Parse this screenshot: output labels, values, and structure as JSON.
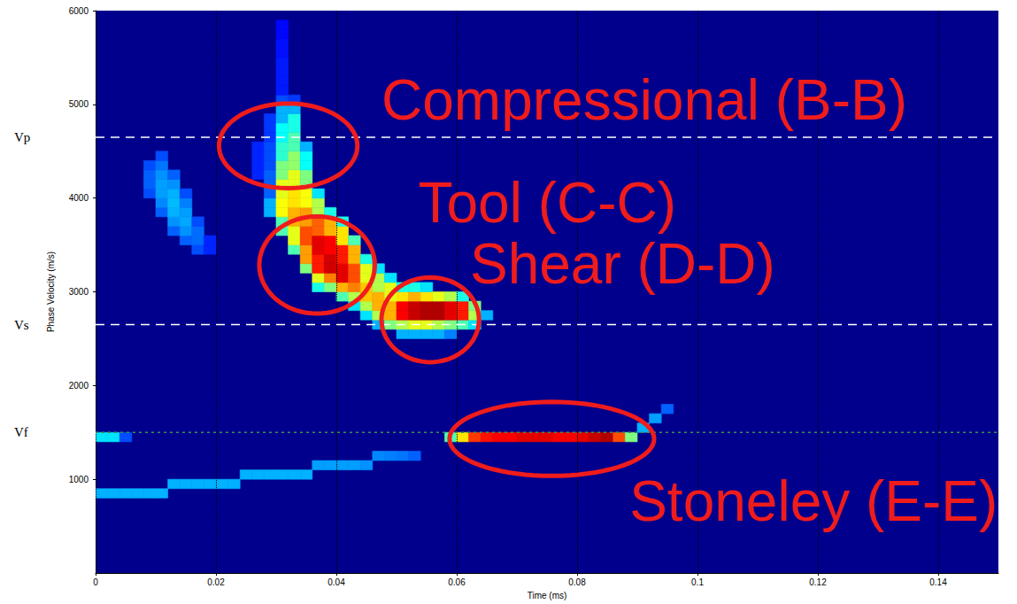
{
  "chart_data": {
    "type": "heatmap",
    "x_label": "Time (ms)",
    "y_label": "Phase Velocity (m/s)",
    "xlim": [
      0,
      0.15
    ],
    "xticks": [
      0,
      0.02,
      0.04,
      0.06,
      0.08,
      0.1,
      0.12,
      0.14
    ],
    "ylim": [
      0,
      6000
    ],
    "yticks": [
      1000,
      2000,
      3000,
      4000,
      5000,
      6000
    ],
    "grid": "x",
    "heatmap": {
      "cell_width": 0.002,
      "cell_height": 100,
      "color_range": [
        0,
        1
      ],
      "colors": [
        "#00008c",
        "#0000ff",
        "#007fff",
        "#00ffff",
        "#7fff7f",
        "#ffff00",
        "#ff7f00",
        "#ff0000",
        "#7f0000"
      ],
      "cells": [
        [
          0.008,
          4000,
          0.2
        ],
        [
          0.008,
          4100,
          0.22
        ],
        [
          0.008,
          4200,
          0.22
        ],
        [
          0.008,
          4300,
          0.2
        ],
        [
          0.01,
          3800,
          0.22
        ],
        [
          0.01,
          3900,
          0.26
        ],
        [
          0.01,
          4000,
          0.28
        ],
        [
          0.01,
          4100,
          0.28
        ],
        [
          0.01,
          4200,
          0.27
        ],
        [
          0.01,
          4300,
          0.24
        ],
        [
          0.01,
          4400,
          0.2
        ],
        [
          0.012,
          3600,
          0.22
        ],
        [
          0.012,
          3700,
          0.27
        ],
        [
          0.012,
          3800,
          0.3
        ],
        [
          0.012,
          3900,
          0.31
        ],
        [
          0.012,
          4000,
          0.3
        ],
        [
          0.012,
          4100,
          0.27
        ],
        [
          0.012,
          4200,
          0.22
        ],
        [
          0.014,
          3500,
          0.22
        ],
        [
          0.014,
          3600,
          0.27
        ],
        [
          0.014,
          3700,
          0.29
        ],
        [
          0.014,
          3800,
          0.28
        ],
        [
          0.014,
          3900,
          0.25
        ],
        [
          0.014,
          4000,
          0.2
        ],
        [
          0.016,
          3400,
          0.2
        ],
        [
          0.016,
          3500,
          0.23
        ],
        [
          0.016,
          3600,
          0.23
        ],
        [
          0.016,
          3700,
          0.2
        ],
        [
          0.018,
          3400,
          0.16
        ],
        [
          0.018,
          3500,
          0.16
        ],
        [
          0.026,
          4200,
          0.16
        ],
        [
          0.026,
          4300,
          0.16
        ],
        [
          0.026,
          4400,
          0.16
        ],
        [
          0.026,
          4500,
          0.16
        ],
        [
          0.028,
          3800,
          0.3
        ],
        [
          0.028,
          3900,
          0.3
        ],
        [
          0.028,
          4000,
          0.22
        ],
        [
          0.028,
          4100,
          0.22
        ],
        [
          0.028,
          4200,
          0.22
        ],
        [
          0.028,
          4300,
          0.2
        ],
        [
          0.028,
          4400,
          0.2
        ],
        [
          0.028,
          4500,
          0.2
        ],
        [
          0.028,
          4600,
          0.18
        ],
        [
          0.028,
          4700,
          0.18
        ],
        [
          0.028,
          4800,
          0.18
        ],
        [
          0.03,
          3600,
          0.45
        ],
        [
          0.03,
          3700,
          0.45
        ],
        [
          0.03,
          3800,
          0.62
        ],
        [
          0.03,
          3900,
          0.62
        ],
        [
          0.03,
          4000,
          0.6
        ],
        [
          0.03,
          4100,
          0.6
        ],
        [
          0.03,
          4200,
          0.5
        ],
        [
          0.03,
          4300,
          0.5
        ],
        [
          0.03,
          4400,
          0.42
        ],
        [
          0.03,
          4500,
          0.42
        ],
        [
          0.03,
          4600,
          0.38
        ],
        [
          0.03,
          4700,
          0.38
        ],
        [
          0.03,
          4800,
          0.3
        ],
        [
          0.03,
          4900,
          0.3
        ],
        [
          0.03,
          5000,
          0.2
        ],
        [
          0.03,
          5100,
          0.15
        ],
        [
          0.03,
          5200,
          0.15
        ],
        [
          0.03,
          5300,
          0.15
        ],
        [
          0.03,
          5400,
          0.15
        ],
        [
          0.03,
          5500,
          0.14
        ],
        [
          0.03,
          5600,
          0.14
        ],
        [
          0.03,
          5700,
          0.13
        ],
        [
          0.03,
          5800,
          0.13
        ],
        [
          0.032,
          3400,
          0.45
        ],
        [
          0.032,
          3500,
          0.6
        ],
        [
          0.032,
          3600,
          0.6
        ],
        [
          0.032,
          3700,
          0.7
        ],
        [
          0.032,
          3800,
          0.7
        ],
        [
          0.032,
          3900,
          0.65
        ],
        [
          0.032,
          4000,
          0.65
        ],
        [
          0.032,
          4100,
          0.6
        ],
        [
          0.032,
          4200,
          0.6
        ],
        [
          0.032,
          4300,
          0.52
        ],
        [
          0.032,
          4400,
          0.52
        ],
        [
          0.032,
          4500,
          0.45
        ],
        [
          0.032,
          4600,
          0.45
        ],
        [
          0.032,
          4700,
          0.4
        ],
        [
          0.032,
          4800,
          0.4
        ],
        [
          0.032,
          4900,
          0.3
        ],
        [
          0.032,
          5000,
          0.18
        ],
        [
          0.034,
          3200,
          0.5
        ],
        [
          0.034,
          3300,
          0.72
        ],
        [
          0.034,
          3400,
          0.72
        ],
        [
          0.034,
          3500,
          0.8
        ],
        [
          0.034,
          3600,
          0.8
        ],
        [
          0.034,
          3700,
          0.72
        ],
        [
          0.034,
          3800,
          0.72
        ],
        [
          0.034,
          3900,
          0.62
        ],
        [
          0.034,
          4000,
          0.62
        ],
        [
          0.034,
          4100,
          0.5
        ],
        [
          0.034,
          4200,
          0.5
        ],
        [
          0.034,
          4300,
          0.38
        ],
        [
          0.034,
          4400,
          0.38
        ],
        [
          0.034,
          4500,
          0.3
        ],
        [
          0.036,
          3000,
          0.4
        ],
        [
          0.036,
          3100,
          0.6
        ],
        [
          0.036,
          3200,
          0.85
        ],
        [
          0.036,
          3300,
          0.85
        ],
        [
          0.036,
          3400,
          0.9
        ],
        [
          0.036,
          3500,
          0.9
        ],
        [
          0.036,
          3600,
          0.78
        ],
        [
          0.036,
          3700,
          0.78
        ],
        [
          0.036,
          3800,
          0.55
        ],
        [
          0.036,
          3900,
          0.55
        ],
        [
          0.036,
          4000,
          0.35
        ],
        [
          0.038,
          3000,
          0.5
        ],
        [
          0.038,
          3100,
          0.75
        ],
        [
          0.038,
          3200,
          0.92
        ],
        [
          0.038,
          3300,
          0.92
        ],
        [
          0.038,
          3400,
          0.88
        ],
        [
          0.038,
          3500,
          0.88
        ],
        [
          0.038,
          3600,
          0.7
        ],
        [
          0.038,
          3700,
          0.7
        ],
        [
          0.038,
          3800,
          0.4
        ],
        [
          0.04,
          2900,
          0.45
        ],
        [
          0.04,
          3000,
          0.7
        ],
        [
          0.04,
          3100,
          0.9
        ],
        [
          0.04,
          3200,
          0.9
        ],
        [
          0.04,
          3300,
          0.85
        ],
        [
          0.04,
          3400,
          0.85
        ],
        [
          0.04,
          3500,
          0.65
        ],
        [
          0.04,
          3600,
          0.65
        ],
        [
          0.04,
          3700,
          0.4
        ],
        [
          0.042,
          2800,
          0.35
        ],
        [
          0.042,
          2900,
          0.55
        ],
        [
          0.042,
          3000,
          0.75
        ],
        [
          0.042,
          3100,
          0.8
        ],
        [
          0.042,
          3200,
          0.8
        ],
        [
          0.042,
          3300,
          0.7
        ],
        [
          0.042,
          3400,
          0.7
        ],
        [
          0.042,
          3500,
          0.45
        ],
        [
          0.044,
          2700,
          0.35
        ],
        [
          0.044,
          2800,
          0.55
        ],
        [
          0.044,
          2900,
          0.68
        ],
        [
          0.044,
          3000,
          0.68
        ],
        [
          0.044,
          3100,
          0.6
        ],
        [
          0.044,
          3200,
          0.6
        ],
        [
          0.044,
          3300,
          0.4
        ],
        [
          0.046,
          2600,
          0.3
        ],
        [
          0.046,
          2700,
          0.55
        ],
        [
          0.046,
          2800,
          0.7
        ],
        [
          0.046,
          2900,
          0.7
        ],
        [
          0.046,
          3000,
          0.55
        ],
        [
          0.046,
          3100,
          0.55
        ],
        [
          0.046,
          3200,
          0.35
        ],
        [
          0.048,
          2600,
          0.5
        ],
        [
          0.048,
          2700,
          0.7
        ],
        [
          0.048,
          2800,
          0.7
        ],
        [
          0.048,
          2900,
          0.6
        ],
        [
          0.048,
          3000,
          0.6
        ],
        [
          0.048,
          3100,
          0.35
        ],
        [
          0.05,
          2500,
          0.3
        ],
        [
          0.05,
          2600,
          0.55
        ],
        [
          0.05,
          2700,
          0.88
        ],
        [
          0.05,
          2800,
          0.88
        ],
        [
          0.05,
          2900,
          0.65
        ],
        [
          0.05,
          3000,
          0.4
        ],
        [
          0.052,
          2500,
          0.3
        ],
        [
          0.052,
          2600,
          0.6
        ],
        [
          0.052,
          2700,
          0.93
        ],
        [
          0.052,
          2800,
          0.93
        ],
        [
          0.052,
          2900,
          0.7
        ],
        [
          0.052,
          3000,
          0.4
        ],
        [
          0.054,
          2500,
          0.3
        ],
        [
          0.054,
          2600,
          0.6
        ],
        [
          0.054,
          2700,
          0.95
        ],
        [
          0.054,
          2800,
          0.95
        ],
        [
          0.054,
          2900,
          0.65
        ],
        [
          0.054,
          3000,
          0.35
        ],
        [
          0.056,
          2500,
          0.3
        ],
        [
          0.056,
          2600,
          0.55
        ],
        [
          0.056,
          2700,
          0.95
        ],
        [
          0.056,
          2800,
          0.95
        ],
        [
          0.056,
          2900,
          0.6
        ],
        [
          0.058,
          2500,
          0.25
        ],
        [
          0.058,
          2600,
          0.5
        ],
        [
          0.058,
          2700,
          0.9
        ],
        [
          0.058,
          2800,
          0.9
        ],
        [
          0.058,
          2900,
          0.55
        ],
        [
          0.06,
          2600,
          0.45
        ],
        [
          0.06,
          2700,
          0.85
        ],
        [
          0.06,
          2800,
          0.85
        ],
        [
          0.06,
          2900,
          0.4
        ],
        [
          0.062,
          2600,
          0.35
        ],
        [
          0.062,
          2700,
          0.55
        ],
        [
          0.062,
          2800,
          0.5
        ],
        [
          0.064,
          2700,
          0.3
        ],
        [
          0.058,
          1400,
          0.45
        ],
        [
          0.06,
          1400,
          0.65
        ],
        [
          0.062,
          1400,
          0.82
        ],
        [
          0.064,
          1400,
          0.86
        ],
        [
          0.066,
          1400,
          0.88
        ],
        [
          0.068,
          1400,
          0.88
        ],
        [
          0.07,
          1400,
          0.9
        ],
        [
          0.072,
          1400,
          0.9
        ],
        [
          0.074,
          1400,
          0.9
        ],
        [
          0.076,
          1400,
          0.88
        ],
        [
          0.078,
          1400,
          0.88
        ],
        [
          0.08,
          1400,
          0.9
        ],
        [
          0.082,
          1400,
          0.93
        ],
        [
          0.084,
          1400,
          0.95
        ],
        [
          0.086,
          1400,
          0.8
        ],
        [
          0.088,
          1400,
          0.5
        ],
        [
          0.09,
          1500,
          0.3
        ],
        [
          0.092,
          1600,
          0.28
        ],
        [
          0.094,
          1700,
          0.22
        ],
        [
          0,
          1400,
          0.35
        ],
        [
          0.002,
          1400,
          0.35
        ],
        [
          0.004,
          1400,
          0.2
        ],
        [
          0,
          800,
          0.3
        ],
        [
          0.002,
          800,
          0.3
        ],
        [
          0.004,
          800,
          0.3
        ],
        [
          0.006,
          800,
          0.3
        ],
        [
          0.008,
          800,
          0.3
        ],
        [
          0.01,
          800,
          0.3
        ],
        [
          0.012,
          900,
          0.3
        ],
        [
          0.014,
          900,
          0.3
        ],
        [
          0.016,
          900,
          0.3
        ],
        [
          0.018,
          900,
          0.3
        ],
        [
          0.02,
          900,
          0.3
        ],
        [
          0.022,
          900,
          0.3
        ],
        [
          0.024,
          1000,
          0.3
        ],
        [
          0.026,
          1000,
          0.3
        ],
        [
          0.028,
          1000,
          0.3
        ],
        [
          0.03,
          1000,
          0.3
        ],
        [
          0.032,
          1000,
          0.3
        ],
        [
          0.034,
          1000,
          0.3
        ],
        [
          0.036,
          1100,
          0.28
        ],
        [
          0.038,
          1100,
          0.28
        ],
        [
          0.04,
          1100,
          0.28
        ],
        [
          0.042,
          1100,
          0.28
        ],
        [
          0.044,
          1100,
          0.27
        ],
        [
          0.046,
          1200,
          0.26
        ],
        [
          0.048,
          1200,
          0.25
        ],
        [
          0.05,
          1200,
          0.24
        ],
        [
          0.052,
          1200,
          0.22
        ]
      ]
    },
    "reference_lines": [
      {
        "label": "Vp",
        "value": 4650,
        "color": "#ffffff",
        "line_style": "dashed"
      },
      {
        "label": "Vs",
        "value": 2650,
        "color": "#ffffff",
        "line_style": "dashed"
      },
      {
        "label": "Vf",
        "value": 1500,
        "color": "#3f8f4f",
        "line_style": "dotted"
      }
    ],
    "annotations": [
      {
        "text": "Compressional (B-B)",
        "color": "#f01c1c",
        "at": [
          0.0475,
          5050
        ],
        "ellipse": {
          "x": 0.032,
          "y": 4557,
          "rx": 0.0115,
          "ry": 452
        }
      },
      {
        "text": "Tool (C-C)",
        "color": "#f01c1c",
        "at": [
          0.0536,
          3950
        ],
        "ellipse": {
          "x": 0.0368,
          "y": 3286,
          "rx": 0.0096,
          "ry": 518
        }
      },
      {
        "text": "Shear (D-D)",
        "color": "#f01c1c",
        "at": [
          0.0622,
          3300
        ],
        "ellipse": {
          "x": 0.0556,
          "y": 2702,
          "rx": 0.0081,
          "ry": 452
        }
      },
      {
        "text": "Stoneley (E-E)",
        "color": "#f01c1c",
        "at": [
          0.0887,
          763
        ],
        "ellipse": {
          "x": 0.0758,
          "y": 1431,
          "rx": 0.017,
          "ry": 395
        }
      }
    ]
  }
}
